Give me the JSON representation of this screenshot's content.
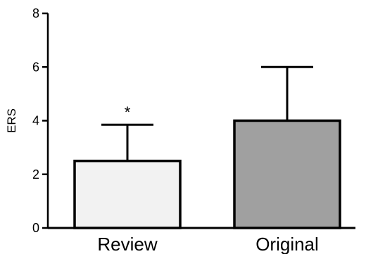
{
  "chart_data": {
    "type": "bar",
    "categories": [
      "Review",
      "Original"
    ],
    "values": [
      2.5,
      4.0
    ],
    "error_upper": [
      3.85,
      6.0
    ],
    "colors": [
      "#f2f2f2",
      "#a0a0a0"
    ],
    "annotations": [
      "*",
      ""
    ],
    "ylabel": "ERS",
    "xlabel": "",
    "ylim": [
      0,
      8
    ],
    "yticks": [
      0,
      2,
      4,
      6,
      8
    ],
    "ytick_labels": [
      "0",
      "2",
      "4",
      "6",
      "8"
    ],
    "grid": false,
    "legend": "none"
  }
}
